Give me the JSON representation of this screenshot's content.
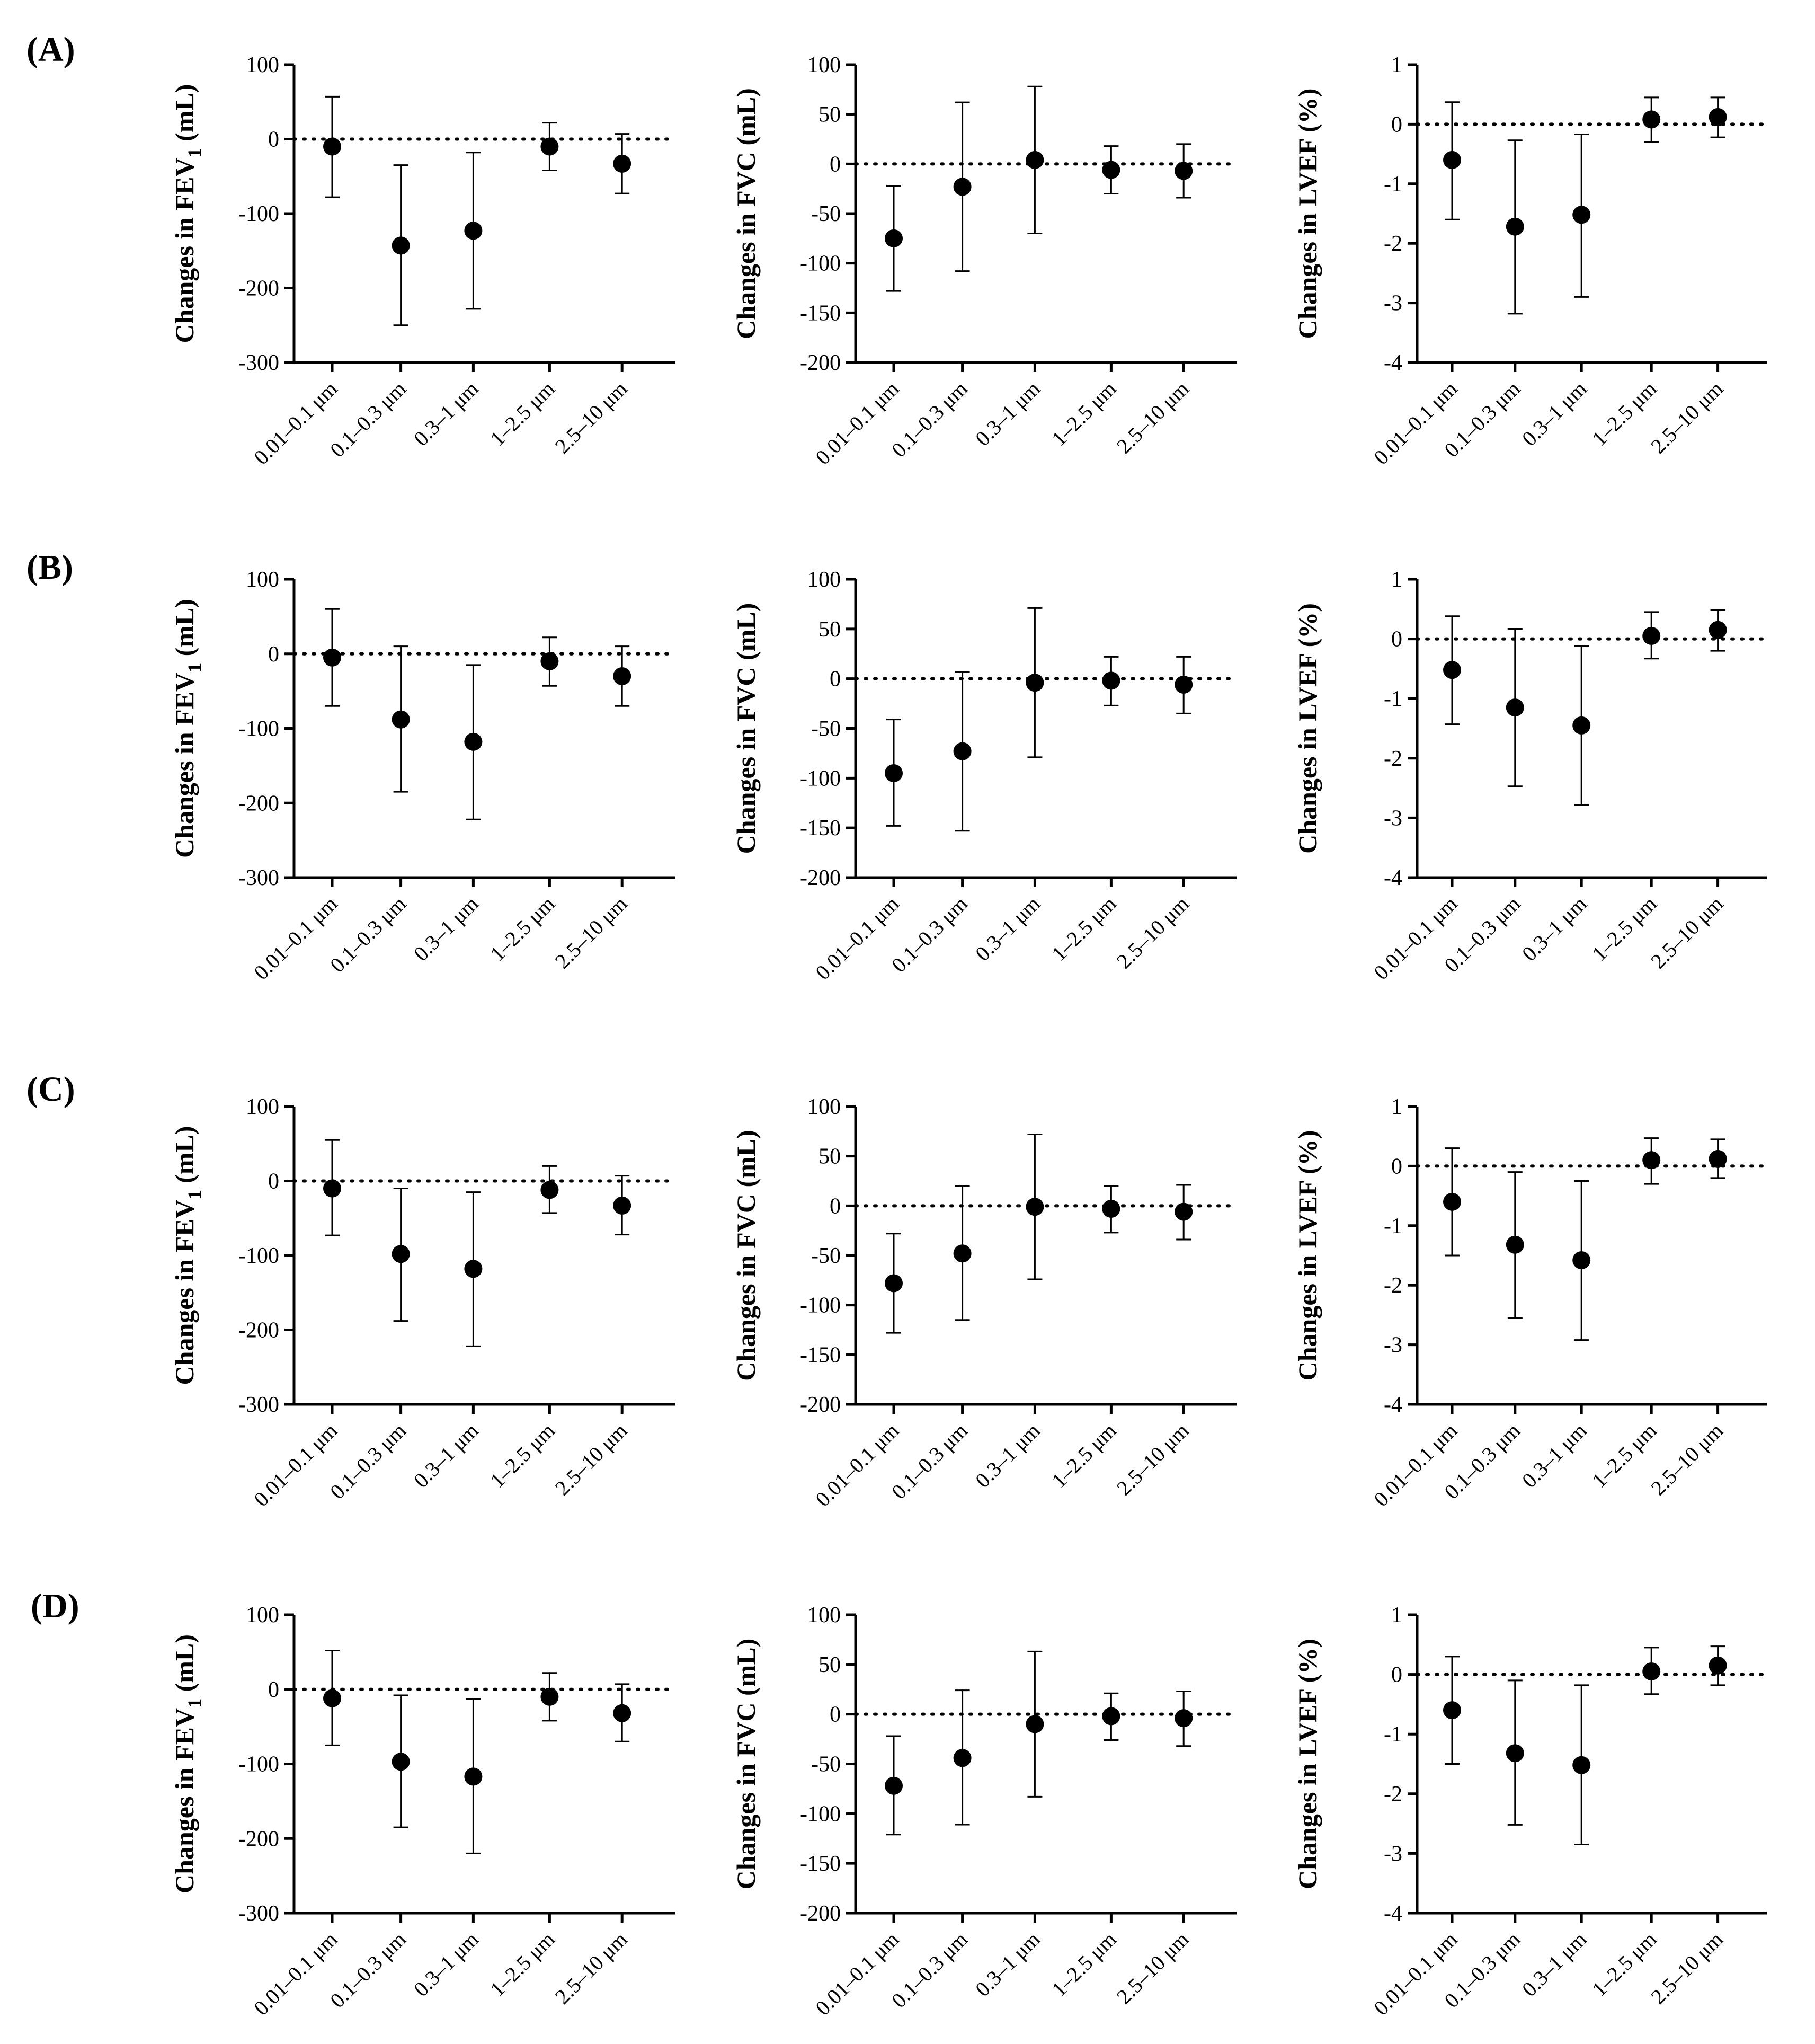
{
  "figure": {
    "categories": [
      "0.01–0.1 μm",
      "0.1–0.3 μm",
      "0.3–1 μm",
      "1–2.5 μm",
      "2.5–10 μm"
    ],
    "colors": {
      "marker": "#000000",
      "axis": "#000000",
      "reference_line": "#000000"
    },
    "ref_value": 0
  },
  "chart_data": [
    {
      "panel": "(A)",
      "type": "scatter",
      "ylabel": "Changes in FEV",
      "ylabel_sub": "1",
      "ylabel_unit": " (mL)",
      "ylim": [
        -300,
        100
      ],
      "yticks": [
        100,
        0,
        -100,
        -200,
        -300
      ],
      "values": [
        -10,
        -143,
        -123,
        -10,
        -33
      ],
      "lower": [
        -78,
        -250,
        -228,
        -42,
        -73
      ],
      "upper": [
        57,
        -35,
        -18,
        22,
        7
      ]
    },
    {
      "panel": "(A)",
      "type": "scatter",
      "ylabel": "Changes in FVC",
      "ylabel_sub": "",
      "ylabel_unit": " (mL)",
      "ylim": [
        -200,
        100
      ],
      "yticks": [
        100,
        50,
        0,
        -50,
        -100,
        -150,
        -200
      ],
      "values": [
        -75,
        -23,
        4,
        -6,
        -7
      ],
      "lower": [
        -128,
        -108,
        -70,
        -30,
        -34
      ],
      "upper": [
        -22,
        62,
        78,
        18,
        20
      ]
    },
    {
      "panel": "(A)",
      "type": "scatter",
      "ylabel": "Changes in LVEF",
      "ylabel_sub": "",
      "ylabel_unit": " (%)",
      "ylim": [
        -4,
        1
      ],
      "yticks": [
        1,
        0,
        -1,
        -2,
        -3,
        -4
      ],
      "values": [
        -0.6,
        -1.72,
        -1.52,
        0.08,
        0.12
      ],
      "lower": [
        -1.6,
        -3.18,
        -2.9,
        -0.3,
        -0.22
      ],
      "upper": [
        0.37,
        -0.27,
        -0.17,
        0.45,
        0.45
      ]
    },
    {
      "panel": "(B)",
      "type": "scatter",
      "ylabel": "Changes in FEV",
      "ylabel_sub": "1",
      "ylabel_unit": " (mL)",
      "ylim": [
        -300,
        100
      ],
      "yticks": [
        100,
        0,
        -100,
        -200,
        -300
      ],
      "values": [
        -5,
        -88,
        -118,
        -10,
        -30
      ],
      "lower": [
        -70,
        -185,
        -222,
        -43,
        -70
      ],
      "upper": [
        60,
        10,
        -15,
        22,
        10
      ]
    },
    {
      "panel": "(B)",
      "type": "scatter",
      "ylabel": "Changes in FVC",
      "ylabel_sub": "",
      "ylabel_unit": " (mL)",
      "ylim": [
        -200,
        100
      ],
      "yticks": [
        100,
        50,
        0,
        -50,
        -100,
        -150,
        -200
      ],
      "values": [
        -95,
        -73,
        -4,
        -2,
        -6
      ],
      "lower": [
        -148,
        -153,
        -79,
        -27,
        -35
      ],
      "upper": [
        -41,
        7,
        71,
        22,
        22
      ]
    },
    {
      "panel": "(B)",
      "type": "scatter",
      "ylabel": "Changes in LVEF",
      "ylabel_sub": "",
      "ylabel_unit": " (%)",
      "ylim": [
        -4,
        1
      ],
      "yticks": [
        1,
        0,
        -1,
        -2,
        -3,
        -4
      ],
      "values": [
        -0.52,
        -1.15,
        -1.45,
        0.05,
        0.15
      ],
      "lower": [
        -1.43,
        -2.47,
        -2.78,
        -0.33,
        -0.2
      ],
      "upper": [
        0.38,
        0.17,
        -0.12,
        0.45,
        0.48
      ]
    },
    {
      "panel": "(C)",
      "type": "scatter",
      "ylabel": "Changes in FEV",
      "ylabel_sub": "1",
      "ylabel_unit": " (mL)",
      "ylim": [
        -300,
        100
      ],
      "yticks": [
        100,
        0,
        -100,
        -200,
        -300
      ],
      "values": [
        -10,
        -98,
        -118,
        -12,
        -33
      ],
      "lower": [
        -73,
        -188,
        -222,
        -43,
        -72
      ],
      "upper": [
        55,
        -10,
        -15,
        20,
        7
      ]
    },
    {
      "panel": "(C)",
      "type": "scatter",
      "ylabel": "Changes in FVC",
      "ylabel_sub": "",
      "ylabel_unit": " (mL)",
      "ylim": [
        -200,
        100
      ],
      "yticks": [
        100,
        50,
        0,
        -50,
        -100,
        -150,
        -200
      ],
      "values": [
        -78,
        -48,
        -1,
        -3,
        -6
      ],
      "lower": [
        -128,
        -115,
        -74,
        -27,
        -34
      ],
      "upper": [
        -28,
        20,
        72,
        20,
        21
      ]
    },
    {
      "panel": "(C)",
      "type": "scatter",
      "ylabel": "Changes in LVEF",
      "ylabel_sub": "",
      "ylabel_unit": " (%)",
      "ylim": [
        -4,
        1
      ],
      "yticks": [
        1,
        0,
        -1,
        -2,
        -3,
        -4
      ],
      "values": [
        -0.6,
        -1.32,
        -1.58,
        0.1,
        0.12
      ],
      "lower": [
        -1.5,
        -2.55,
        -2.92,
        -0.3,
        -0.2
      ],
      "upper": [
        0.3,
        -0.1,
        -0.25,
        0.47,
        0.45
      ]
    },
    {
      "panel": "(D)",
      "type": "scatter",
      "ylabel": "Changes in FEV",
      "ylabel_sub": "1",
      "ylabel_unit": " (mL)",
      "ylim": [
        -300,
        100
      ],
      "yticks": [
        100,
        0,
        -100,
        -200,
        -300
      ],
      "values": [
        -12,
        -97,
        -117,
        -10,
        -32
      ],
      "lower": [
        -75,
        -185,
        -220,
        -42,
        -70
      ],
      "upper": [
        52,
        -8,
        -13,
        22,
        7
      ]
    },
    {
      "panel": "(D)",
      "type": "scatter",
      "ylabel": "Changes in FVC",
      "ylabel_sub": "",
      "ylabel_unit": " (mL)",
      "ylim": [
        -200,
        100
      ],
      "yticks": [
        100,
        50,
        0,
        -50,
        -100,
        -150,
        -200
      ],
      "values": [
        -72,
        -44,
        -10,
        -2,
        -4
      ],
      "lower": [
        -121,
        -111,
        -83,
        -26,
        -32
      ],
      "upper": [
        -22,
        24,
        63,
        21,
        23
      ]
    },
    {
      "panel": "(D)",
      "type": "scatter",
      "ylabel": "Changes in LVEF",
      "ylabel_sub": "",
      "ylabel_unit": " (%)",
      "ylim": [
        -4,
        1
      ],
      "yticks": [
        1,
        0,
        -1,
        -2,
        -3,
        -4
      ],
      "values": [
        -0.6,
        -1.32,
        -1.52,
        0.05,
        0.15
      ],
      "lower": [
        -1.5,
        -2.52,
        -2.85,
        -0.33,
        -0.18
      ],
      "upper": [
        0.3,
        -0.1,
        -0.18,
        0.45,
        0.47
      ]
    }
  ]
}
